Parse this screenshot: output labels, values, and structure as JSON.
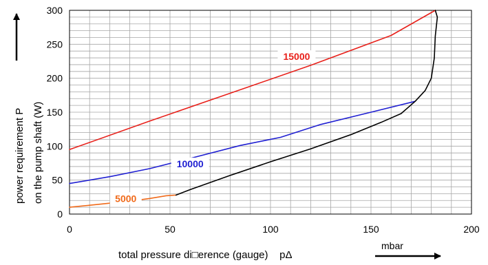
{
  "chart_data": {
    "type": "line",
    "title": "",
    "xlabel": "total pressure di□erence (gauge)    pΔ",
    "xunit": "mbar",
    "ylabel_line1": "power requirement P",
    "ylabel_line2": "on the pump shaft (W)",
    "xlim": [
      0,
      200
    ],
    "ylim": [
      0,
      300
    ],
    "x_ticks": [
      0,
      50,
      100,
      150,
      200
    ],
    "y_ticks": [
      0,
      50,
      100,
      150,
      200,
      250,
      300
    ],
    "grid": true,
    "series": [
      {
        "name": "15000",
        "color": "#e8201a",
        "label_at": [
          113,
          232
        ],
        "points": [
          [
            0,
            95
          ],
          [
            40,
            137
          ],
          [
            80,
            178
          ],
          [
            120,
            219
          ],
          [
            160,
            263
          ],
          [
            182,
            300
          ]
        ]
      },
      {
        "name": "10000",
        "color": "#1f1fd2",
        "label_at": [
          60,
          74
        ],
        "points": [
          [
            0,
            45
          ],
          [
            20,
            55
          ],
          [
            40,
            67
          ],
          [
            60,
            82
          ],
          [
            85,
            101
          ],
          [
            105,
            113
          ],
          [
            125,
            132
          ],
          [
            150,
            150
          ],
          [
            172,
            166
          ]
        ]
      },
      {
        "name": "5000",
        "color": "#f06a1a",
        "label_at": [
          28,
          23
        ],
        "points": [
          [
            0,
            10
          ],
          [
            10,
            13
          ],
          [
            20,
            16
          ],
          [
            30,
            19
          ],
          [
            40,
            23
          ],
          [
            48,
            27
          ],
          [
            53,
            28
          ]
        ]
      },
      {
        "name": "",
        "color": "#000000",
        "points": [
          [
            53,
            28
          ],
          [
            60,
            36
          ],
          [
            80,
            57
          ],
          [
            100,
            77
          ],
          [
            120,
            96
          ],
          [
            140,
            117
          ],
          [
            155,
            135
          ],
          [
            165,
            148
          ],
          [
            172,
            166
          ],
          [
            177,
            182
          ],
          [
            180,
            200
          ],
          [
            181.5,
            230
          ],
          [
            182,
            262
          ],
          [
            183,
            290
          ],
          [
            182,
            300
          ]
        ]
      }
    ]
  }
}
